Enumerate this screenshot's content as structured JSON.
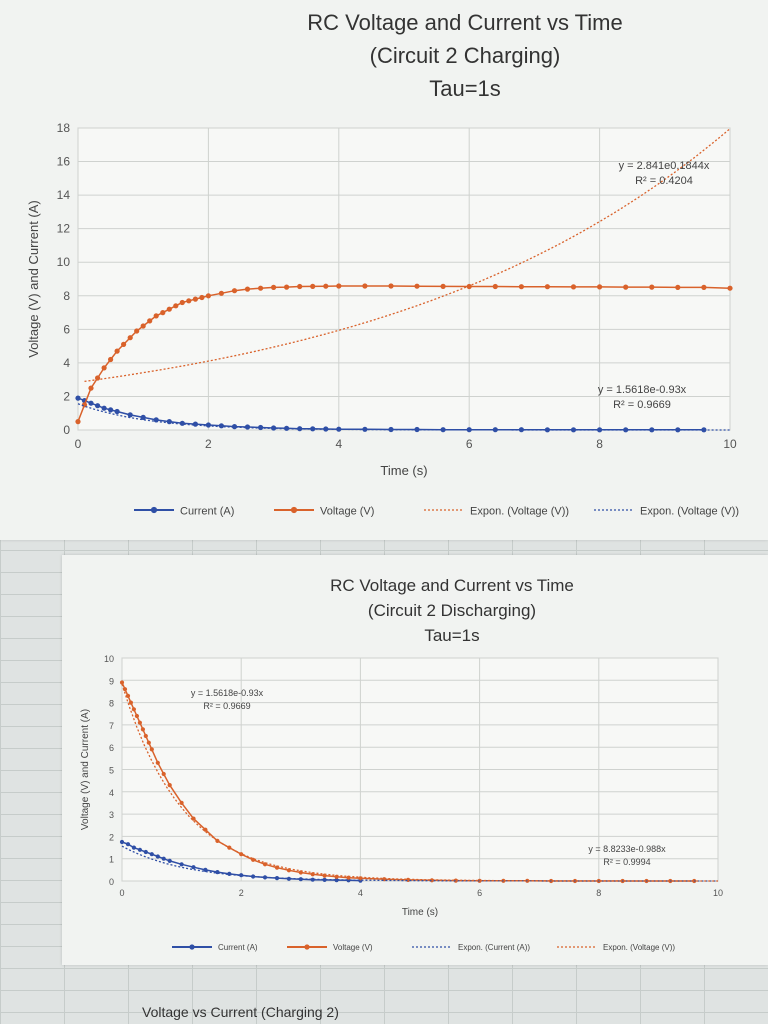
{
  "chart_data": [
    {
      "type": "scatter",
      "title_lines": [
        "RC Voltage and Current vs Time",
        "(Circuit 2 Charging)",
        "Tau=1s"
      ],
      "xlabel": "Time (s)",
      "ylabel": "Voltage (V) and Current (A)",
      "xlim": [
        0,
        10
      ],
      "ylim": [
        0,
        18
      ],
      "x_ticks": [
        "0",
        "2",
        "4",
        "6",
        "8",
        "10"
      ],
      "y_ticks": [
        "0",
        "2",
        "4",
        "6",
        "8",
        "10",
        "12",
        "14",
        "16",
        "18"
      ],
      "grid": true,
      "legend_position": "bottom",
      "series": [
        {
          "name": "Current (A)",
          "color": "#2f4fa6",
          "marker": "circle",
          "x": [
            0,
            0.1,
            0.2,
            0.3,
            0.4,
            0.5,
            0.6,
            0.8,
            1.0,
            1.2,
            1.4,
            1.6,
            1.8,
            2.0,
            2.2,
            2.4,
            2.6,
            2.8,
            3.0,
            3.2,
            3.4,
            3.6,
            3.8,
            4.0,
            4.4,
            4.8,
            5.2,
            5.6,
            6.0,
            6.4,
            6.8,
            7.2,
            7.6,
            8.0,
            8.4,
            8.8,
            9.2,
            9.6
          ],
          "y": [
            1.9,
            1.75,
            1.6,
            1.45,
            1.3,
            1.2,
            1.1,
            0.9,
            0.75,
            0.6,
            0.5,
            0.4,
            0.35,
            0.3,
            0.25,
            0.2,
            0.18,
            0.15,
            0.12,
            0.1,
            0.08,
            0.07,
            0.06,
            0.05,
            0.04,
            0.03,
            0.03,
            0.02,
            0.02,
            0.02,
            0.02,
            0.01,
            0.01,
            0.01,
            0.01,
            0.01,
            0.01,
            0.01
          ]
        },
        {
          "name": "Voltage (V)",
          "color": "#d9622b",
          "marker": "circle",
          "x": [
            0,
            0.1,
            0.2,
            0.3,
            0.4,
            0.5,
            0.6,
            0.7,
            0.8,
            0.9,
            1.0,
            1.1,
            1.2,
            1.3,
            1.4,
            1.5,
            1.6,
            1.7,
            1.8,
            1.9,
            2.0,
            2.2,
            2.4,
            2.6,
            2.8,
            3.0,
            3.2,
            3.4,
            3.6,
            3.8,
            4.0,
            4.4,
            4.8,
            5.2,
            5.6,
            6.0,
            6.4,
            6.8,
            7.2,
            7.6,
            8.0,
            8.4,
            8.8,
            9.2,
            9.6,
            10.0
          ],
          "y": [
            0.5,
            1.5,
            2.5,
            3.1,
            3.7,
            4.2,
            4.7,
            5.1,
            5.5,
            5.9,
            6.2,
            6.5,
            6.8,
            7.0,
            7.2,
            7.4,
            7.6,
            7.7,
            7.8,
            7.9,
            8.0,
            8.15,
            8.3,
            8.4,
            8.45,
            8.5,
            8.52,
            8.55,
            8.56,
            8.57,
            8.58,
            8.58,
            8.58,
            8.57,
            8.56,
            8.55,
            8.55,
            8.54,
            8.54,
            8.53,
            8.53,
            8.52,
            8.52,
            8.5,
            8.5,
            8.45
          ]
        },
        {
          "name": "Expon. (Voltage (V))",
          "color": "#d9622b",
          "style": "dotted-trendline",
          "equation": "y = 2.841e0.1844x",
          "r_squared": "R² = 0.4204",
          "fit": {
            "a": 2.841,
            "b": 0.1844,
            "x_from": 0.1,
            "x_to": 10
          }
        },
        {
          "name": "Expon. (Voltage (V))",
          "color": "#2f4fa6",
          "style": "dotted-trendline",
          "equation": "y = 1.5618e-0.93x",
          "r_squared": "R² = 0.9669",
          "fit": {
            "a": 1.5618,
            "b": -0.93,
            "x_from": 0,
            "x_to": 10
          }
        }
      ]
    },
    {
      "type": "scatter",
      "title_lines": [
        "RC Voltage and Current vs Time",
        "(Circuit 2 Discharging)",
        "Tau=1s"
      ],
      "xlabel": "Time (s)",
      "ylabel": "Voltage (V) and Current (A)",
      "xlim": [
        0,
        10
      ],
      "ylim": [
        0,
        10
      ],
      "x_ticks": [
        "0",
        "2",
        "4",
        "6",
        "8",
        "10"
      ],
      "y_ticks": [
        "0",
        "1",
        "2",
        "3",
        "4",
        "5",
        "6",
        "7",
        "8",
        "9",
        "10"
      ],
      "grid": true,
      "legend_position": "bottom",
      "series": [
        {
          "name": "Current (A)",
          "color": "#2f4fa6",
          "marker": "circle",
          "x": [
            0,
            0.1,
            0.2,
            0.3,
            0.4,
            0.5,
            0.6,
            0.7,
            0.8,
            1.0,
            1.2,
            1.4,
            1.6,
            1.8,
            2.0,
            2.2,
            2.4,
            2.6,
            2.8,
            3.0,
            3.2,
            3.4,
            3.6,
            3.8,
            4.0
          ],
          "y": [
            1.75,
            1.65,
            1.5,
            1.4,
            1.3,
            1.2,
            1.1,
            1.0,
            0.9,
            0.75,
            0.62,
            0.5,
            0.4,
            0.32,
            0.26,
            0.2,
            0.16,
            0.13,
            0.1,
            0.08,
            0.06,
            0.05,
            0.04,
            0.03,
            0.02
          ]
        },
        {
          "name": "Voltage (V)",
          "color": "#d9622b",
          "marker": "circle",
          "x": [
            0,
            0.05,
            0.1,
            0.15,
            0.2,
            0.25,
            0.3,
            0.35,
            0.4,
            0.45,
            0.5,
            0.6,
            0.7,
            0.8,
            1.0,
            1.2,
            1.4,
            1.6,
            1.8,
            2.0,
            2.2,
            2.4,
            2.6,
            2.8,
            3.0,
            3.2,
            3.4,
            3.6,
            3.8,
            4.0,
            4.4,
            4.8,
            5.2,
            5.6,
            6.0,
            6.4,
            6.8,
            7.2,
            7.6,
            8.0,
            8.4,
            8.8,
            9.2,
            9.6
          ],
          "y": [
            8.9,
            8.6,
            8.3,
            8.0,
            7.7,
            7.4,
            7.1,
            6.8,
            6.5,
            6.2,
            5.9,
            5.3,
            4.8,
            4.3,
            3.5,
            2.8,
            2.3,
            1.8,
            1.5,
            1.2,
            0.95,
            0.75,
            0.6,
            0.48,
            0.38,
            0.3,
            0.24,
            0.19,
            0.15,
            0.12,
            0.08,
            0.05,
            0.03,
            0.02,
            0.01,
            0.01,
            0.01,
            0.0,
            0.0,
            0.0,
            0.0,
            0.0,
            0.0,
            0.0
          ]
        },
        {
          "name": "Expon. (Current (A))",
          "color": "#2f4fa6",
          "style": "dotted-trendline",
          "equation": "y = 1.5618e-0.93x",
          "r_squared": "R² = 0.9669",
          "fit": {
            "a": 1.5618,
            "b": -0.93,
            "x_from": 0,
            "x_to": 10
          }
        },
        {
          "name": "Expon. (Voltage (V))",
          "color": "#d9622b",
          "style": "dotted-trendline",
          "equation": "y = 8.8233e-0.988x",
          "r_squared": "R² = 0.9994",
          "fit": {
            "a": 8.8233,
            "b": -0.988,
            "x_from": 0,
            "x_to": 10
          }
        }
      ]
    }
  ],
  "next_chart_title": "Voltage  vs Current (Charging 2)"
}
